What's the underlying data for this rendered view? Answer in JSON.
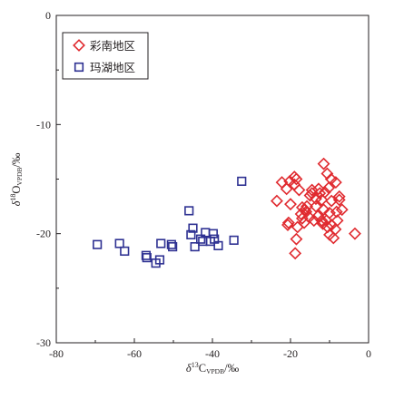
{
  "chart_data": {
    "type": "scatter",
    "xlabel": {
      "delta": "δ",
      "sup": "13",
      "main": "C",
      "sub": "VPDB",
      "unit": "/‰"
    },
    "ylabel": {
      "delta": "δ",
      "sup": "18",
      "main": "O",
      "sub": "VPDB",
      "unit": "/‰"
    },
    "xlim": [
      -80,
      0
    ],
    "ylim": [
      -30,
      0
    ],
    "xticks": [
      -80,
      -60,
      -40,
      -20,
      0
    ],
    "yticks": [
      0,
      -10,
      -20,
      -30
    ],
    "grid": false,
    "legend": "top-left",
    "series": [
      {
        "name": "彩南地区",
        "marker": "diamond",
        "color": "#e02a2f",
        "points": [
          [
            -11.5,
            -13.6
          ],
          [
            -10.6,
            -14.5
          ],
          [
            -9.6,
            -15.0
          ],
          [
            -8.4,
            -15.3
          ],
          [
            -10.2,
            -15.8
          ],
          [
            -11.2,
            -16.2
          ],
          [
            -12.5,
            -16.3
          ],
          [
            -13.5,
            -16.8
          ],
          [
            -12.0,
            -16.9
          ],
          [
            -9.5,
            -17.0
          ],
          [
            -7.5,
            -16.6
          ],
          [
            -6.8,
            -17.8
          ],
          [
            -8.2,
            -18.0
          ],
          [
            -10.0,
            -18.1
          ],
          [
            -11.5,
            -17.8
          ],
          [
            -13.0,
            -18.4
          ],
          [
            -12.0,
            -18.8
          ],
          [
            -10.8,
            -18.8
          ],
          [
            -9.5,
            -19.2
          ],
          [
            -8.5,
            -19.6
          ],
          [
            -10.0,
            -20.1
          ],
          [
            -9.0,
            -20.4
          ],
          [
            -10.5,
            -19.4
          ],
          [
            -11.7,
            -19.1
          ],
          [
            -13.5,
            -17.5
          ],
          [
            -14.5,
            -16.0
          ],
          [
            -15.0,
            -16.5
          ],
          [
            -15.8,
            -17.5
          ],
          [
            -15.2,
            -18.5
          ],
          [
            -16.0,
            -18.0
          ],
          [
            -16.5,
            -19.0
          ],
          [
            -17.0,
            -18.6
          ],
          [
            -17.3,
            -18.2
          ],
          [
            -18.2,
            -19.4
          ],
          [
            -18.5,
            -20.5
          ],
          [
            -18.8,
            -21.8
          ],
          [
            -17.0,
            -17.6
          ],
          [
            -17.8,
            -16.0
          ],
          [
            -18.5,
            -15.0
          ],
          [
            -19.0,
            -14.8
          ],
          [
            -19.0,
            -15.5
          ],
          [
            -20.2,
            -15.2
          ],
          [
            -21.0,
            -15.9
          ],
          [
            -22.2,
            -15.3
          ],
          [
            -23.5,
            -17.0
          ],
          [
            -20.0,
            -17.3
          ],
          [
            -20.5,
            -19.0
          ],
          [
            -20.7,
            -19.2
          ],
          [
            -14.0,
            -18.8
          ],
          [
            -14.5,
            -16.3
          ],
          [
            -12.8,
            -15.9
          ],
          [
            -3.5,
            -20.0
          ],
          [
            -7.5,
            -16.9
          ],
          [
            -8.0,
            -18.8
          ],
          [
            -16.3,
            -17.8
          ]
        ]
      },
      {
        "name": "玛湖地区",
        "marker": "square",
        "color": "#2e3192",
        "points": [
          [
            -69.5,
            -21.0
          ],
          [
            -63.8,
            -20.9
          ],
          [
            -62.5,
            -21.6
          ],
          [
            -57.0,
            -22.0
          ],
          [
            -56.8,
            -22.2
          ],
          [
            -54.5,
            -22.7
          ],
          [
            -53.5,
            -22.4
          ],
          [
            -53.2,
            -20.9
          ],
          [
            -50.5,
            -21.0
          ],
          [
            -50.2,
            -21.2
          ],
          [
            -46.0,
            -17.9
          ],
          [
            -45.5,
            -20.1
          ],
          [
            -45.0,
            -19.5
          ],
          [
            -44.5,
            -21.2
          ],
          [
            -43.0,
            -20.5
          ],
          [
            -42.5,
            -20.7
          ],
          [
            -41.8,
            -19.9
          ],
          [
            -40.5,
            -20.7
          ],
          [
            -39.5,
            -20.5
          ],
          [
            -38.5,
            -21.1
          ],
          [
            -34.5,
            -20.6
          ],
          [
            -32.5,
            -15.2
          ],
          [
            -39.8,
            -20.0
          ]
        ]
      }
    ]
  }
}
